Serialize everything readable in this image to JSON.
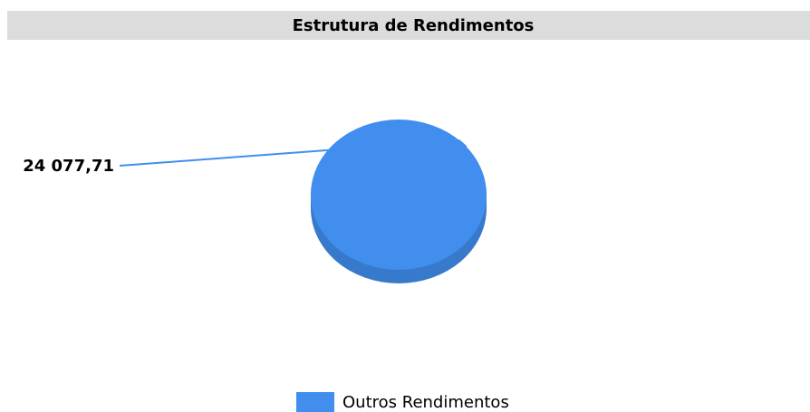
{
  "chart_data": {
    "type": "pie",
    "title": "Estrutura de Rendimentos",
    "categories": [
      "Outros Rendimentos"
    ],
    "values": [
      24077.71
    ],
    "value_labels": [
      "24 077,71"
    ],
    "colors": [
      "#418eef"
    ],
    "legend": "bottom"
  }
}
